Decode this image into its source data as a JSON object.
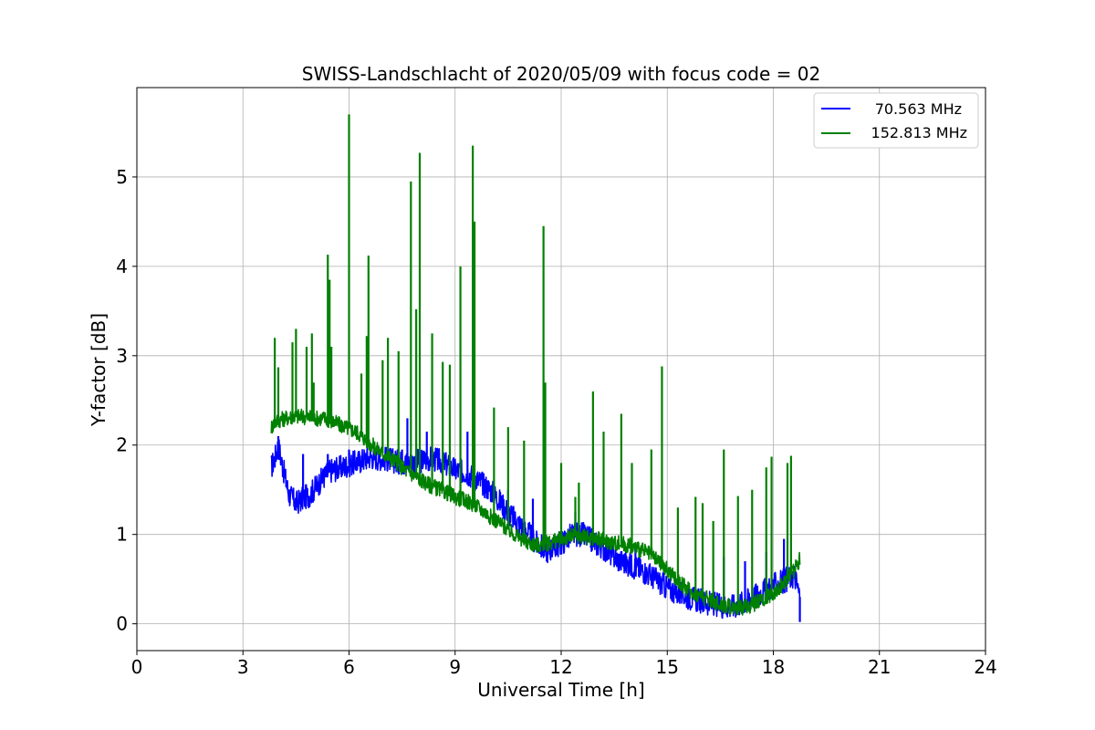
{
  "chart_data": {
    "type": "line",
    "title": "SWISS-Landschlacht of 2020/05/09 with focus code = 02",
    "xlabel": "Universal Time [h]",
    "ylabel": "Y-factor [dB]",
    "xlim": [
      0,
      24
    ],
    "ylim": [
      -0.3,
      6.0
    ],
    "xticks": [
      0,
      3,
      6,
      9,
      12,
      15,
      18,
      21,
      24
    ],
    "yticks": [
      0,
      1,
      2,
      3,
      4,
      5
    ],
    "grid": true,
    "legend_position": "top-right",
    "series": [
      {
        "name": "70.563 MHz",
        "color": "#0000ff",
        "points": [
          [
            3.8,
            1.75
          ],
          [
            3.9,
            1.85
          ],
          [
            4.0,
            2.0
          ],
          [
            4.1,
            1.8
          ],
          [
            4.3,
            1.45
          ],
          [
            4.5,
            1.35
          ],
          [
            4.7,
            1.4
          ],
          [
            4.9,
            1.45
          ],
          [
            5.1,
            1.55
          ],
          [
            5.3,
            1.65
          ],
          [
            5.5,
            1.72
          ],
          [
            5.8,
            1.75
          ],
          [
            6.0,
            1.78
          ],
          [
            6.3,
            1.82
          ],
          [
            6.6,
            1.87
          ],
          [
            7.0,
            1.85
          ],
          [
            7.3,
            1.82
          ],
          [
            7.6,
            1.8
          ],
          [
            8.0,
            1.82
          ],
          [
            8.3,
            1.85
          ],
          [
            8.6,
            1.82
          ],
          [
            9.0,
            1.72
          ],
          [
            9.3,
            1.7
          ],
          [
            9.6,
            1.62
          ],
          [
            10.0,
            1.5
          ],
          [
            10.3,
            1.35
          ],
          [
            10.6,
            1.2
          ],
          [
            11.0,
            1.05
          ],
          [
            11.3,
            0.9
          ],
          [
            11.6,
            0.82
          ],
          [
            12.0,
            0.9
          ],
          [
            12.3,
            1.0
          ],
          [
            12.6,
            1.0
          ],
          [
            13.0,
            0.9
          ],
          [
            13.3,
            0.82
          ],
          [
            13.6,
            0.72
          ],
          [
            14.0,
            0.65
          ],
          [
            14.3,
            0.6
          ],
          [
            14.6,
            0.52
          ],
          [
            15.0,
            0.4
          ],
          [
            15.3,
            0.35
          ],
          [
            15.6,
            0.3
          ],
          [
            16.0,
            0.25
          ],
          [
            16.3,
            0.22
          ],
          [
            16.6,
            0.2
          ],
          [
            16.9,
            0.2
          ],
          [
            17.2,
            0.25
          ],
          [
            17.5,
            0.32
          ],
          [
            17.8,
            0.38
          ],
          [
            18.1,
            0.45
          ],
          [
            18.4,
            0.5
          ],
          [
            18.6,
            0.55
          ],
          [
            18.75,
            0.3
          ]
        ],
        "spikes": [
          [
            4.0,
            2.1
          ],
          [
            4.7,
            1.9
          ],
          [
            5.4,
            1.9
          ],
          [
            6.0,
            1.95
          ],
          [
            7.5,
            1.95
          ],
          [
            7.65,
            2.3
          ],
          [
            8.2,
            2.15
          ],
          [
            9.35,
            2.15
          ],
          [
            10.5,
            1.5
          ],
          [
            11.2,
            1.4
          ],
          [
            11.55,
            0.95
          ],
          [
            12.4,
            1.25
          ],
          [
            14.1,
            0.9
          ],
          [
            16.6,
            0.75
          ],
          [
            17.2,
            0.7
          ],
          [
            17.8,
            0.8
          ],
          [
            18.3,
            0.95
          ],
          [
            18.75,
            0.02
          ]
        ]
      },
      {
        "name": "152.813 MHz",
        "color": "#008000",
        "points": [
          [
            3.8,
            2.2
          ],
          [
            3.9,
            2.25
          ],
          [
            4.0,
            2.28
          ],
          [
            4.2,
            2.3
          ],
          [
            4.4,
            2.32
          ],
          [
            4.7,
            2.32
          ],
          [
            5.0,
            2.3
          ],
          [
            5.3,
            2.3
          ],
          [
            5.6,
            2.25
          ],
          [
            5.9,
            2.2
          ],
          [
            6.2,
            2.15
          ],
          [
            6.5,
            2.05
          ],
          [
            6.8,
            1.95
          ],
          [
            7.0,
            1.9
          ],
          [
            7.3,
            1.82
          ],
          [
            7.6,
            1.72
          ],
          [
            8.0,
            1.62
          ],
          [
            8.3,
            1.55
          ],
          [
            8.6,
            1.5
          ],
          [
            9.0,
            1.42
          ],
          [
            9.3,
            1.38
          ],
          [
            9.6,
            1.32
          ],
          [
            10.0,
            1.2
          ],
          [
            10.3,
            1.12
          ],
          [
            10.6,
            1.02
          ],
          [
            11.0,
            0.92
          ],
          [
            11.3,
            0.88
          ],
          [
            11.6,
            0.9
          ],
          [
            12.0,
            0.95
          ],
          [
            12.3,
            0.98
          ],
          [
            12.6,
            0.98
          ],
          [
            13.0,
            0.95
          ],
          [
            13.3,
            0.92
          ],
          [
            13.6,
            0.9
          ],
          [
            14.0,
            0.87
          ],
          [
            14.3,
            0.82
          ],
          [
            14.6,
            0.75
          ],
          [
            15.0,
            0.6
          ],
          [
            15.3,
            0.48
          ],
          [
            15.6,
            0.38
          ],
          [
            16.0,
            0.3
          ],
          [
            16.3,
            0.25
          ],
          [
            16.6,
            0.2
          ],
          [
            17.0,
            0.18
          ],
          [
            17.3,
            0.2
          ],
          [
            17.6,
            0.25
          ],
          [
            18.0,
            0.35
          ],
          [
            18.3,
            0.45
          ],
          [
            18.6,
            0.6
          ],
          [
            18.75,
            0.72
          ]
        ],
        "spikes": [
          [
            3.9,
            3.2
          ],
          [
            4.0,
            2.87
          ],
          [
            4.4,
            3.15
          ],
          [
            4.5,
            3.3
          ],
          [
            4.8,
            3.1
          ],
          [
            4.95,
            3.25
          ],
          [
            5.0,
            2.7
          ],
          [
            5.4,
            4.13
          ],
          [
            5.45,
            3.85
          ],
          [
            5.5,
            3.1
          ],
          [
            6.0,
            5.7
          ],
          [
            6.35,
            2.8
          ],
          [
            6.5,
            3.22
          ],
          [
            6.55,
            4.12
          ],
          [
            6.95,
            2.95
          ],
          [
            7.1,
            3.2
          ],
          [
            7.4,
            3.05
          ],
          [
            7.75,
            4.95
          ],
          [
            7.9,
            3.52
          ],
          [
            8.0,
            5.27
          ],
          [
            8.35,
            3.25
          ],
          [
            8.65,
            2.93
          ],
          [
            8.85,
            2.9
          ],
          [
            9.15,
            4.0
          ],
          [
            9.5,
            5.35
          ],
          [
            9.55,
            4.5
          ],
          [
            10.1,
            2.42
          ],
          [
            10.5,
            2.2
          ],
          [
            10.95,
            2.05
          ],
          [
            11.5,
            4.45
          ],
          [
            11.55,
            2.7
          ],
          [
            12.0,
            1.8
          ],
          [
            12.4,
            1.42
          ],
          [
            12.5,
            1.58
          ],
          [
            12.9,
            2.6
          ],
          [
            13.2,
            2.15
          ],
          [
            13.7,
            2.35
          ],
          [
            14.0,
            1.8
          ],
          [
            14.55,
            1.95
          ],
          [
            14.85,
            2.88
          ],
          [
            15.3,
            1.3
          ],
          [
            15.8,
            1.42
          ],
          [
            16.0,
            1.35
          ],
          [
            16.3,
            1.15
          ],
          [
            16.6,
            1.95
          ],
          [
            17.0,
            1.43
          ],
          [
            17.4,
            1.5
          ],
          [
            17.8,
            1.75
          ],
          [
            17.95,
            1.87
          ],
          [
            18.4,
            1.8
          ],
          [
            18.5,
            1.88
          ]
        ]
      }
    ]
  }
}
